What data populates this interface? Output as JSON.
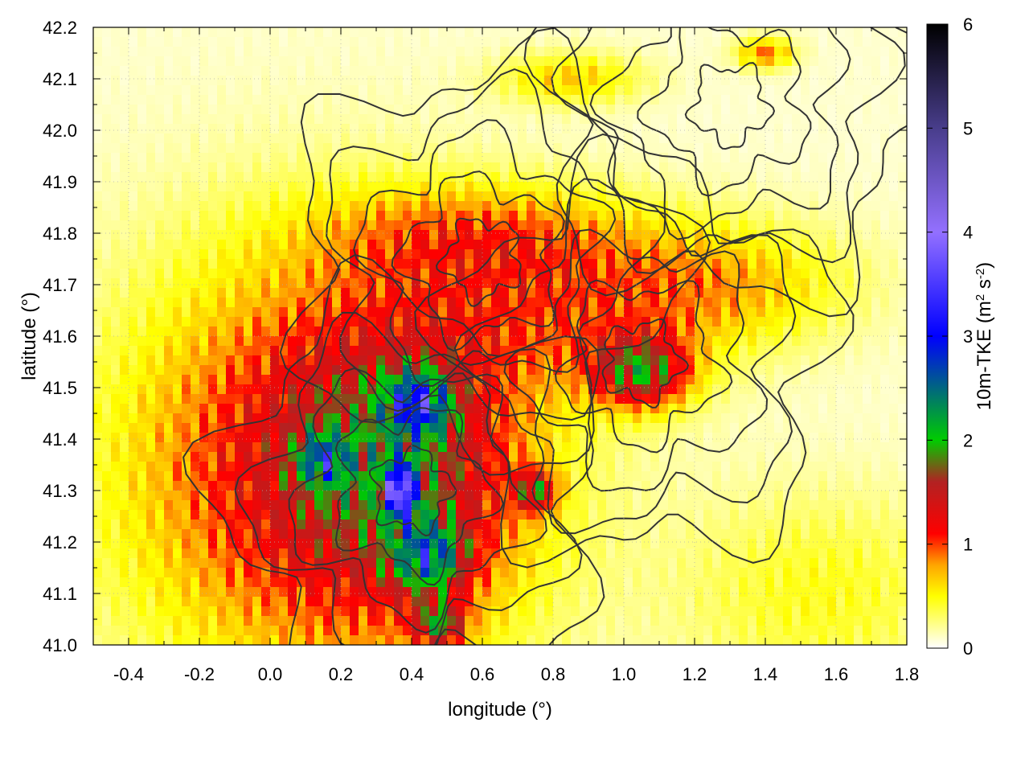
{
  "chart_data": {
    "type": "heatmap",
    "title": "",
    "xlabel": "longitude (°)",
    "ylabel": "latitude (°)",
    "xlim": [
      -0.5,
      1.8
    ],
    "ylim": [
      41.0,
      42.2
    ],
    "x_ticks": [
      {
        "value": -0.4,
        "label": "-0.4"
      },
      {
        "value": -0.2,
        "label": "-0.2"
      },
      {
        "value": 0.0,
        "label": "0.0"
      },
      {
        "value": 0.2,
        "label": "0.2"
      },
      {
        "value": 0.4,
        "label": "0.4"
      },
      {
        "value": 0.6,
        "label": "0.6"
      },
      {
        "value": 0.8,
        "label": "0.8"
      },
      {
        "value": 1.0,
        "label": "1.0"
      },
      {
        "value": 1.2,
        "label": "1.2"
      },
      {
        "value": 1.4,
        "label": "1.4"
      },
      {
        "value": 1.6,
        "label": "1.6"
      },
      {
        "value": 1.8,
        "label": "1.8"
      }
    ],
    "y_ticks": [
      {
        "value": 41.0,
        "label": "41.0"
      },
      {
        "value": 41.1,
        "label": "41.1"
      },
      {
        "value": 41.2,
        "label": "41.2"
      },
      {
        "value": 41.3,
        "label": "41.3"
      },
      {
        "value": 41.4,
        "label": "41.4"
      },
      {
        "value": 41.5,
        "label": "41.5"
      },
      {
        "value": 41.6,
        "label": "41.6"
      },
      {
        "value": 41.7,
        "label": "41.7"
      },
      {
        "value": 41.8,
        "label": "41.8"
      },
      {
        "value": 41.9,
        "label": "41.9"
      },
      {
        "value": 42.0,
        "label": "42.0"
      },
      {
        "value": 42.1,
        "label": "42.1"
      },
      {
        "value": 42.2,
        "label": "42.2"
      }
    ],
    "grid": true,
    "colorbar": {
      "label": "10m-TKE (m² s⁻²)",
      "label_main": "10m-TKE (m",
      "label_sup1": "2",
      "label_mid": " s",
      "label_sup2": "-2",
      "label_end": ")",
      "range": [
        0,
        6
      ],
      "ticks": [
        {
          "value": 0,
          "label": "0"
        },
        {
          "value": 1,
          "label": "1"
        },
        {
          "value": 2,
          "label": "2"
        },
        {
          "value": 3,
          "label": "3"
        },
        {
          "value": 4,
          "label": "4"
        },
        {
          "value": 5,
          "label": "5"
        },
        {
          "value": 6,
          "label": "6"
        }
      ],
      "stops": [
        {
          "value": 0.0,
          "color": "#ffffff"
        },
        {
          "value": 0.5,
          "color": "#ffff00"
        },
        {
          "value": 0.8,
          "color": "#ffa500"
        },
        {
          "value": 1.1,
          "color": "#ff0000"
        },
        {
          "value": 1.6,
          "color": "#b22222"
        },
        {
          "value": 2.0,
          "color": "#00cc00"
        },
        {
          "value": 3.0,
          "color": "#0000ff"
        },
        {
          "value": 4.0,
          "color": "#9370ff"
        },
        {
          "value": 5.0,
          "color": "#483d8b"
        },
        {
          "value": 6.0,
          "color": "#000000"
        }
      ]
    },
    "field_features": [
      {
        "lon": 0.15,
        "lat": 41.35,
        "amp": 1.6,
        "sx": 0.55,
        "sy": 0.4
      },
      {
        "lon": 0.4,
        "lat": 41.35,
        "amp": 1.0,
        "sx": 0.3,
        "sy": 0.28
      },
      {
        "lon": 0.42,
        "lat": 41.47,
        "amp": 2.0,
        "sx": 0.09,
        "sy": 0.06
      },
      {
        "lon": 0.37,
        "lat": 41.3,
        "amp": 3.0,
        "sx": 0.04,
        "sy": 0.05
      },
      {
        "lon": 0.45,
        "lat": 41.17,
        "amp": 1.8,
        "sx": 0.1,
        "sy": 0.07
      },
      {
        "lon": 0.48,
        "lat": 41.04,
        "amp": 1.6,
        "sx": 0.07,
        "sy": 0.04
      },
      {
        "lon": 0.15,
        "lat": 41.36,
        "amp": 1.5,
        "sx": 0.07,
        "sy": 0.05
      },
      {
        "lon": 0.75,
        "lat": 41.3,
        "amp": 1.5,
        "sx": 0.06,
        "sy": 0.04
      },
      {
        "lon": 1.05,
        "lat": 41.53,
        "amp": 1.9,
        "sx": 0.14,
        "sy": 0.07
      },
      {
        "lon": 0.85,
        "lat": 41.65,
        "amp": 0.8,
        "sx": 0.4,
        "sy": 0.15
      },
      {
        "lon": 0.6,
        "lat": 41.8,
        "amp": 0.8,
        "sx": 0.45,
        "sy": 0.1
      },
      {
        "lon": 1.3,
        "lat": 41.7,
        "amp": 0.7,
        "sx": 0.35,
        "sy": 0.12
      },
      {
        "lon": 0.85,
        "lat": 42.1,
        "amp": 0.7,
        "sx": 0.2,
        "sy": 0.05
      },
      {
        "lon": 1.4,
        "lat": 42.15,
        "amp": 1.0,
        "sx": 0.08,
        "sy": 0.03
      },
      {
        "lon": 1.55,
        "lat": 41.1,
        "amp": 0.45,
        "sx": 0.4,
        "sy": 0.2
      }
    ]
  }
}
